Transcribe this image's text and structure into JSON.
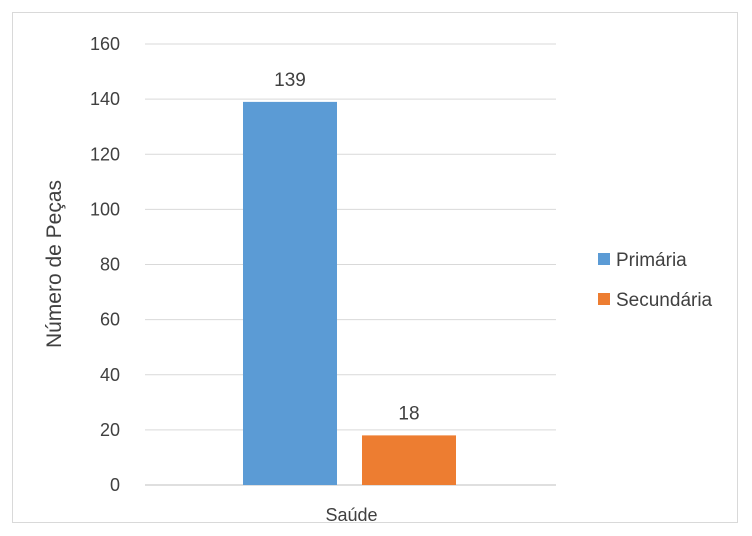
{
  "chart_data": {
    "type": "bar",
    "categories": [
      "Saúde"
    ],
    "series": [
      {
        "name": "Primária",
        "values": [
          139
        ],
        "color": "#5b9bd5"
      },
      {
        "name": "Secundária",
        "values": [
          18
        ],
        "color": "#ed7d31"
      }
    ],
    "ylabel": "Número de Peças",
    "ylim": [
      0,
      160
    ],
    "yticks": [
      0,
      20,
      40,
      60,
      80,
      100,
      120,
      140,
      160
    ],
    "grid": true,
    "legend_position": "right"
  }
}
